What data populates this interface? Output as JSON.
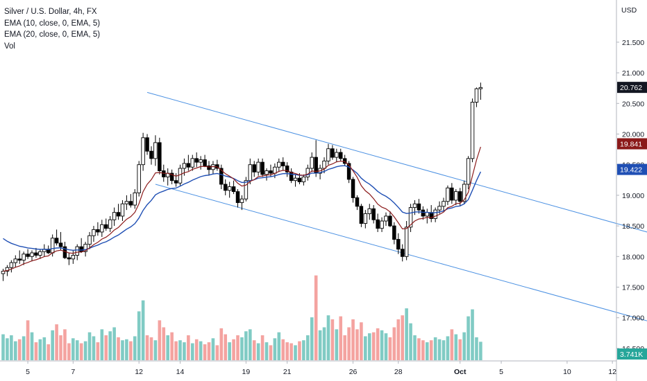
{
  "legend": {
    "symbol": "Silver / U.S. Dollar, 4h, FX",
    "ema10": "EMA (10, close, 0, EMA, 5)",
    "ema20": "EMA (20, close, 0, EMA, 5)",
    "vol": "Vol"
  },
  "colors": {
    "up": "#ffffff",
    "down": "#000000",
    "wick": "#000000",
    "ema10": "#8b1a1a",
    "ema20": "#1f4fb4",
    "channel": "#4a90e2",
    "vol_up": "#80cbc4",
    "vol_down": "#f4a3a0",
    "axis_text": "#131722"
  },
  "chart_data": {
    "type": "candlestick",
    "currency_label": "USD",
    "y_ticks": [
      "21.500",
      "21.000",
      "20.500",
      "20.000",
      "19.500",
      "19.000",
      "18.500",
      "18.000",
      "17.500",
      "17.000",
      "16.500"
    ],
    "ylim": [
      16.25,
      21.9
    ],
    "x_ticks": [
      {
        "label": "5",
        "index": 6
      },
      {
        "label": "7",
        "index": 17
      },
      {
        "label": "12",
        "index": 33
      },
      {
        "label": "14",
        "index": 43
      },
      {
        "label": "19",
        "index": 59
      },
      {
        "label": "21",
        "index": 69
      },
      {
        "label": "26",
        "index": 85
      },
      {
        "label": "28",
        "index": 96
      },
      {
        "label": "Oct",
        "index": 111
      },
      {
        "label": "5",
        "index": 121
      },
      {
        "label": "10",
        "index": 137
      },
      {
        "label": "12",
        "index": 148
      }
    ],
    "badges": {
      "last_price": "20.762",
      "ema10": "19.841",
      "ema20": "19.422",
      "volume": "3.741K"
    },
    "channel_lines": [
      {
        "p1": [
          35,
          20.68
        ],
        "p2": [
          158,
          18.37
        ]
      },
      {
        "p1": [
          37,
          19.18
        ],
        "p2": [
          158,
          16.92
        ]
      }
    ],
    "candles": [
      [
        17.72,
        17.8,
        17.6,
        17.76,
        0.52
      ],
      [
        17.76,
        17.86,
        17.68,
        17.82,
        0.44
      ],
      [
        17.82,
        17.94,
        17.74,
        17.9,
        0.5
      ],
      [
        17.9,
        18.02,
        17.82,
        17.96,
        0.38
      ],
      [
        17.96,
        18.1,
        17.88,
        17.94,
        0.42
      ],
      [
        17.94,
        18.08,
        17.86,
        18.04,
        0.48
      ],
      [
        18.04,
        18.12,
        17.96,
        18.0,
        0.8
      ],
      [
        18.0,
        18.1,
        17.92,
        18.06,
        0.56
      ],
      [
        18.06,
        18.14,
        17.98,
        18.02,
        0.36
      ],
      [
        18.02,
        18.12,
        17.96,
        18.08,
        0.42
      ],
      [
        18.08,
        18.2,
        18.0,
        18.12,
        0.46
      ],
      [
        18.12,
        18.18,
        18.04,
        18.06,
        0.32
      ],
      [
        18.06,
        18.36,
        18.0,
        18.3,
        0.6
      ],
      [
        18.3,
        18.44,
        18.18,
        18.22,
        0.72
      ],
      [
        18.22,
        18.4,
        18.1,
        18.16,
        0.5
      ],
      [
        18.16,
        18.24,
        17.96,
        17.98,
        0.62
      ],
      [
        17.98,
        18.06,
        17.86,
        17.96,
        0.34
      ],
      [
        17.96,
        18.1,
        17.88,
        18.02,
        0.44
      ],
      [
        18.02,
        18.2,
        17.94,
        18.16,
        0.4
      ],
      [
        18.16,
        18.3,
        18.06,
        18.08,
        0.34
      ],
      [
        18.08,
        18.24,
        18.0,
        18.2,
        0.38
      ],
      [
        18.2,
        18.4,
        18.12,
        18.34,
        0.56
      ],
      [
        18.34,
        18.5,
        18.24,
        18.44,
        0.48
      ],
      [
        18.44,
        18.56,
        18.34,
        18.4,
        0.36
      ],
      [
        18.4,
        18.6,
        18.32,
        18.52,
        0.62
      ],
      [
        18.52,
        18.62,
        18.42,
        18.46,
        0.5
      ],
      [
        18.46,
        18.66,
        18.4,
        18.6,
        0.58
      ],
      [
        18.6,
        18.8,
        18.5,
        18.72,
        0.66
      ],
      [
        18.72,
        18.86,
        18.6,
        18.66,
        0.46
      ],
      [
        18.66,
        18.92,
        18.58,
        18.86,
        0.4
      ],
      [
        18.86,
        19.0,
        18.76,
        18.9,
        0.42
      ],
      [
        18.9,
        19.02,
        18.8,
        18.84,
        0.38
      ],
      [
        18.84,
        19.1,
        18.78,
        19.04,
        0.48
      ],
      [
        19.04,
        19.56,
        18.98,
        19.5,
        0.98
      ],
      [
        19.5,
        20.02,
        19.4,
        19.94,
        1.2
      ],
      [
        19.94,
        20.0,
        19.66,
        19.72,
        0.5
      ],
      [
        19.72,
        19.8,
        19.5,
        19.6,
        0.46
      ],
      [
        19.6,
        19.98,
        19.48,
        19.86,
        0.4
      ],
      [
        19.86,
        19.94,
        19.34,
        19.4,
        0.8
      ],
      [
        19.4,
        19.5,
        19.22,
        19.3,
        0.66
      ],
      [
        19.3,
        19.44,
        19.16,
        19.36,
        0.5
      ],
      [
        19.36,
        19.42,
        19.18,
        19.24,
        0.56
      ],
      [
        19.24,
        19.36,
        19.14,
        19.2,
        0.38
      ],
      [
        19.2,
        19.5,
        19.16,
        19.44,
        0.4
      ],
      [
        19.44,
        19.6,
        19.32,
        19.52,
        0.36
      ],
      [
        19.52,
        19.66,
        19.4,
        19.46,
        0.5
      ],
      [
        19.46,
        19.66,
        19.4,
        19.6,
        0.34
      ],
      [
        19.6,
        19.7,
        19.46,
        19.54,
        0.42
      ],
      [
        19.54,
        19.64,
        19.42,
        19.58,
        0.38
      ],
      [
        19.58,
        19.66,
        19.46,
        19.48,
        0.32
      ],
      [
        19.48,
        19.56,
        19.32,
        19.42,
        0.36
      ],
      [
        19.42,
        19.56,
        19.34,
        19.5,
        0.44
      ],
      [
        19.5,
        19.58,
        19.4,
        19.44,
        0.3
      ],
      [
        19.44,
        19.5,
        19.1,
        19.18,
        0.64
      ],
      [
        19.18,
        19.26,
        19.0,
        19.08,
        0.52
      ],
      [
        19.08,
        19.22,
        18.96,
        19.14,
        0.36
      ],
      [
        19.14,
        19.24,
        19.02,
        19.06,
        0.42
      ],
      [
        19.06,
        19.1,
        18.8,
        18.88,
        0.5
      ],
      [
        18.88,
        19.0,
        18.76,
        18.94,
        0.46
      ],
      [
        18.94,
        19.3,
        18.9,
        19.24,
        0.58
      ],
      [
        19.24,
        19.6,
        19.18,
        19.5,
        0.62
      ],
      [
        19.5,
        19.56,
        19.3,
        19.38,
        0.4
      ],
      [
        19.38,
        19.6,
        19.32,
        19.54,
        0.34
      ],
      [
        19.54,
        19.6,
        19.3,
        19.34,
        0.5
      ],
      [
        19.34,
        19.44,
        19.24,
        19.4,
        0.36
      ],
      [
        19.4,
        19.5,
        19.3,
        19.36,
        0.3
      ],
      [
        19.36,
        19.52,
        19.28,
        19.46,
        0.44
      ],
      [
        19.46,
        19.6,
        19.38,
        19.54,
        0.56
      ],
      [
        19.54,
        19.62,
        19.4,
        19.48,
        0.42
      ],
      [
        19.48,
        19.54,
        19.3,
        19.38,
        0.36
      ],
      [
        19.38,
        19.44,
        19.2,
        19.24,
        0.34
      ],
      [
        19.24,
        19.34,
        19.14,
        19.28,
        0.3
      ],
      [
        19.28,
        19.36,
        19.18,
        19.22,
        0.38
      ],
      [
        19.22,
        19.34,
        19.16,
        19.3,
        0.4
      ],
      [
        19.3,
        19.5,
        19.24,
        19.44,
        0.5
      ],
      [
        19.44,
        19.7,
        19.38,
        19.62,
        0.86
      ],
      [
        19.62,
        19.9,
        19.3,
        19.36,
        1.7
      ],
      [
        19.36,
        19.5,
        19.26,
        19.44,
        0.6
      ],
      [
        19.44,
        19.62,
        19.36,
        19.56,
        0.66
      ],
      [
        19.56,
        19.84,
        19.5,
        19.76,
        0.9
      ],
      [
        19.76,
        19.82,
        19.58,
        19.62,
        0.82
      ],
      [
        19.62,
        19.76,
        19.54,
        19.7,
        0.62
      ],
      [
        19.7,
        19.76,
        19.56,
        19.6,
        0.88
      ],
      [
        19.6,
        19.66,
        19.48,
        19.52,
        0.5
      ],
      [
        19.52,
        19.56,
        19.2,
        19.26,
        0.66
      ],
      [
        19.26,
        19.3,
        18.88,
        18.96,
        0.82
      ],
      [
        18.96,
        19.0,
        18.76,
        18.82,
        0.62
      ],
      [
        18.82,
        18.86,
        18.48,
        18.54,
        0.76
      ],
      [
        18.54,
        18.76,
        18.46,
        18.7,
        0.48
      ],
      [
        18.7,
        18.86,
        18.6,
        18.78,
        0.54
      ],
      [
        18.78,
        18.84,
        18.54,
        18.6,
        0.56
      ],
      [
        18.6,
        18.7,
        18.4,
        18.46,
        0.64
      ],
      [
        18.46,
        18.64,
        18.4,
        18.58,
        0.6
      ],
      [
        18.58,
        18.72,
        18.5,
        18.66,
        0.54
      ],
      [
        18.66,
        18.74,
        18.48,
        18.5,
        0.46
      ],
      [
        18.5,
        18.56,
        18.2,
        18.28,
        0.66
      ],
      [
        18.28,
        18.38,
        18.04,
        18.12,
        0.82
      ],
      [
        18.12,
        18.2,
        17.92,
        18.0,
        0.9
      ],
      [
        18.0,
        18.58,
        17.94,
        18.48,
        1.04
      ],
      [
        18.48,
        18.86,
        18.4,
        18.8,
        0.74
      ],
      [
        18.8,
        18.92,
        18.68,
        18.86,
        0.5
      ],
      [
        18.86,
        18.94,
        18.7,
        18.76,
        0.44
      ],
      [
        18.76,
        18.82,
        18.6,
        18.66,
        0.4
      ],
      [
        18.66,
        18.78,
        18.54,
        18.72,
        0.36
      ],
      [
        18.72,
        18.84,
        18.56,
        18.62,
        0.4
      ],
      [
        18.62,
        18.8,
        18.56,
        18.76,
        0.46
      ],
      [
        18.76,
        18.9,
        18.7,
        18.82,
        0.42
      ],
      [
        18.82,
        18.96,
        18.74,
        18.9,
        0.4
      ],
      [
        18.9,
        19.16,
        18.84,
        19.12,
        0.48
      ],
      [
        19.12,
        19.2,
        18.86,
        18.92,
        0.62
      ],
      [
        18.92,
        19.1,
        18.84,
        19.06,
        0.52
      ],
      [
        19.06,
        19.12,
        18.82,
        18.9,
        0.42
      ],
      [
        18.9,
        19.24,
        18.86,
        19.18,
        0.56
      ],
      [
        19.18,
        19.64,
        19.1,
        19.6,
        0.88
      ],
      [
        19.6,
        20.58,
        19.54,
        20.52,
        1.02
      ],
      [
        20.52,
        20.76,
        20.44,
        20.74,
        0.46
      ],
      [
        20.74,
        20.84,
        20.56,
        20.76,
        0.37
      ]
    ]
  }
}
